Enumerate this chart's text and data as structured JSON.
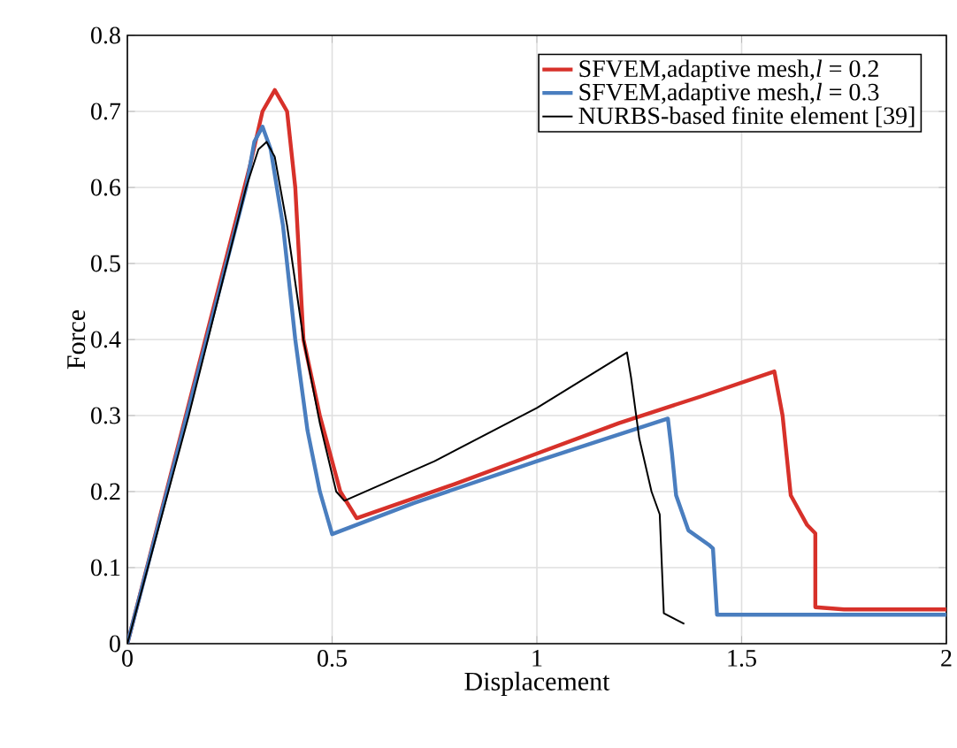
{
  "chart_data": {
    "type": "line",
    "xlabel": "Displacement",
    "ylabel": "Force",
    "xlim": [
      0,
      2
    ],
    "ylim": [
      0,
      0.8
    ],
    "xticks": [
      0,
      0.5,
      1,
      1.5,
      2
    ],
    "yticks": [
      0,
      0.1,
      0.2,
      0.3,
      0.4,
      0.5,
      0.6,
      0.7,
      0.8
    ],
    "grid": true,
    "legend": "top right",
    "line_style": "solid",
    "marker": "none",
    "series": [
      {
        "name": "SFVEM,adaptive mesh,*l* = 0.2",
        "color": "#d7312a",
        "x": [
          0,
          0.3,
          0.33,
          0.36,
          0.39,
          0.41,
          0.43,
          0.47,
          0.52,
          0.56,
          0.8,
          1.0,
          1.2,
          1.4,
          1.58,
          1.6,
          1.62,
          1.66,
          1.68,
          1.68,
          1.75,
          2.0
        ],
        "values": [
          0,
          0.63,
          0.7,
          0.728,
          0.7,
          0.6,
          0.4,
          0.3,
          0.2,
          0.165,
          0.21,
          0.25,
          0.29,
          0.325,
          0.358,
          0.3,
          0.195,
          0.156,
          0.145,
          0.048,
          0.045,
          0.045
        ]
      },
      {
        "name": "SFVEM,adaptive mesh,*l* = 0.3",
        "color": "#4a7ebf",
        "x": [
          0,
          0.15,
          0.29,
          0.31,
          0.33,
          0.35,
          0.38,
          0.41,
          0.44,
          0.47,
          0.5,
          0.7,
          1.0,
          1.32,
          1.33,
          1.34,
          1.37,
          1.42,
          1.43,
          1.44,
          1.7,
          2.0
        ],
        "values": [
          0,
          0.31,
          0.6,
          0.66,
          0.68,
          0.65,
          0.55,
          0.4,
          0.28,
          0.2,
          0.144,
          0.185,
          0.24,
          0.296,
          0.25,
          0.195,
          0.149,
          0.13,
          0.125,
          0.038,
          0.038,
          0.038
        ]
      },
      {
        "name": "NURBS-based finite element [39]",
        "color": "#000000",
        "x": [
          0,
          0.15,
          0.29,
          0.32,
          0.34,
          0.36,
          0.39,
          0.43,
          0.47,
          0.51,
          0.53,
          0.75,
          1.0,
          1.22,
          1.23,
          1.25,
          1.28,
          1.3,
          1.31,
          1.36
        ],
        "values": [
          0,
          0.3,
          0.6,
          0.65,
          0.66,
          0.64,
          0.55,
          0.4,
          0.29,
          0.2,
          0.188,
          0.24,
          0.31,
          0.383,
          0.35,
          0.27,
          0.2,
          0.17,
          0.04,
          0.026
        ]
      }
    ]
  }
}
